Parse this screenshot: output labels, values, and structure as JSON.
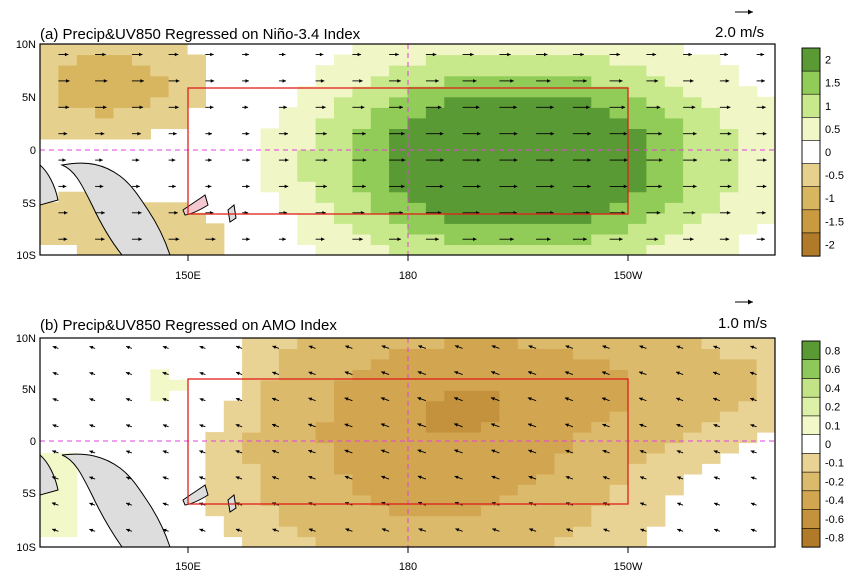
{
  "chart_data": [
    {
      "type": "heatmap",
      "title": "(a) Precip&UV850 Regressed on Niño-3.4 Index",
      "vector_reference_label": "2.0 m/s",
      "x_axis": {
        "ticks": [
          "150E",
          "180",
          "150W"
        ],
        "tick_values_deg_east": [
          150,
          180,
          210
        ],
        "range_deg_east": [
          130,
          230
        ]
      },
      "y_axis": {
        "ticks": [
          "10N",
          "5N",
          "0",
          "5S",
          "10S"
        ],
        "tick_values_deg": [
          10,
          5,
          0,
          -5,
          -10
        ],
        "range_deg": [
          -10,
          10
        ]
      },
      "colorbar": {
        "labels": [
          "2",
          "1.5",
          "1",
          "0.5",
          "0",
          "-0.5",
          "-1",
          "-1.5",
          "-2"
        ],
        "levels": [
          -2,
          -1.5,
          -1,
          -0.5,
          0.5,
          1,
          1.5,
          2
        ],
        "colors": [
          "#b07a28",
          "#c99a40",
          "#d8b660",
          "#e6d08e",
          "#ffffff",
          "#f0f6c6",
          "#c8e88c",
          "#92cc58",
          "#5a9a34"
        ]
      },
      "box": {
        "lon": [
          150,
          210
        ],
        "lat": [
          -6,
          6
        ]
      },
      "features": [
        {
          "lon": 195,
          "lat": -1,
          "sx": 20,
          "sy": 7,
          "amp": 3.0
        },
        {
          "lon": 140,
          "lat": 6,
          "sx": 12,
          "sy": 4,
          "amp": -1.3
        },
        {
          "lon": 140,
          "lat": -7,
          "sx": 12,
          "sy": 3,
          "amp": -0.8
        },
        {
          "lon": 152,
          "lat": -9,
          "sx": 6,
          "sy": 2,
          "amp": -0.6
        }
      ],
      "wind": {
        "pattern": "westerly anomalies over central Pacific, weak easterlies in far west",
        "dir_deg": 0,
        "speed": 1.0
      }
    },
    {
      "type": "heatmap",
      "title": "(b) Precip&UV850 Regressed on AMO Index",
      "vector_reference_label": "1.0 m/s",
      "x_axis": {
        "ticks": [
          "150E",
          "180",
          "150W"
        ],
        "tick_values_deg_east": [
          150,
          180,
          210
        ],
        "range_deg_east": [
          130,
          230
        ]
      },
      "y_axis": {
        "ticks": [
          "10N",
          "5N",
          "0",
          "5S",
          "10S"
        ],
        "tick_values_deg": [
          10,
          5,
          0,
          -5,
          -10
        ],
        "range_deg": [
          -10,
          10
        ]
      },
      "colorbar": {
        "labels": [
          "0.8",
          "0.6",
          "0.4",
          "0.2",
          "0.1",
          "0",
          "-0.1",
          "-0.2",
          "-0.4",
          "-0.6",
          "-0.8"
        ],
        "levels": [
          -0.8,
          -0.6,
          -0.4,
          -0.2,
          -0.1,
          0.1,
          0.2,
          0.4,
          0.6,
          0.8
        ],
        "colors": [
          "#b07a28",
          "#c4923c",
          "#d2a650",
          "#dcba6c",
          "#e8d394",
          "#ffffff",
          "#f2f8c8",
          "#ddf0a8",
          "#c2e486",
          "#8ec85a",
          "#5a9a34"
        ]
      },
      "box": {
        "lon": [
          150,
          210
        ],
        "lat": [
          -6,
          6
        ]
      },
      "features": [
        {
          "lon": 184,
          "lat": 0,
          "sx": 18,
          "sy": 9,
          "amp": -0.55
        },
        {
          "lon": 210,
          "lat": 6,
          "sx": 22,
          "sy": 4,
          "amp": -0.25
        },
        {
          "lon": 148,
          "lat": 5,
          "sx": 6,
          "sy": 3,
          "amp": 0.18
        },
        {
          "lon": 133,
          "lat": -5,
          "sx": 3,
          "sy": 4,
          "amp": 0.2
        }
      ],
      "wind": {
        "pattern": "easterly anomalies over central-east Pacific",
        "dir_deg": 200,
        "speed": 1.0
      }
    }
  ]
}
